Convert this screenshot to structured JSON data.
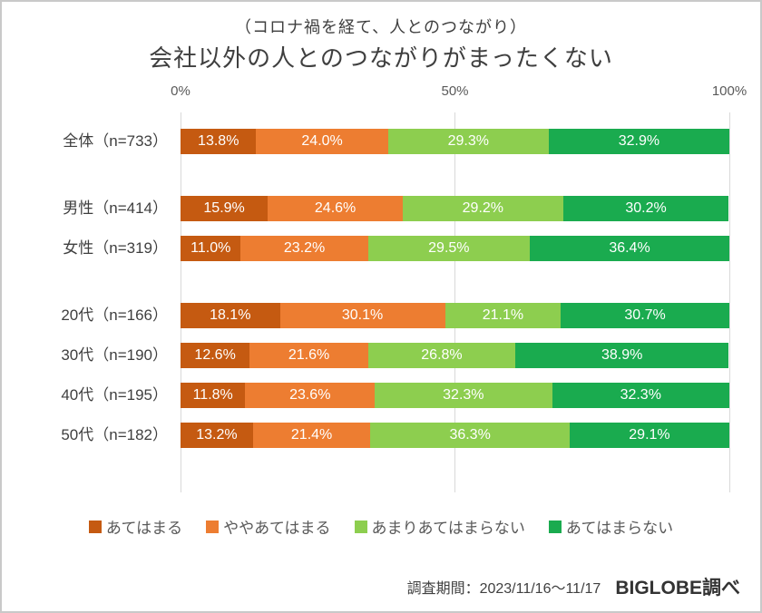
{
  "chart_data": {
    "type": "bar",
    "variant": "horizontal-stacked-100",
    "subtitle": "（コロナ禍を経て、人とのつながり）",
    "title": "会社以外の人とのつながりがまったくない",
    "x_axis": {
      "tick_labels": [
        "0%",
        "50%",
        "100%"
      ],
      "range": [
        0,
        100
      ],
      "gridlines": true
    },
    "categories": [
      "全体（n=733）",
      "男性（n=414）",
      "女性（n=319）",
      "20代（n=166）",
      "30代（n=190）",
      "40代（n=195）",
      "50代（n=182）"
    ],
    "group_breaks": [
      1,
      3
    ],
    "series": [
      {
        "name": "あてはまる",
        "color": "#C55A11",
        "values": [
          13.8,
          15.9,
          11.0,
          18.1,
          12.6,
          11.8,
          13.2
        ]
      },
      {
        "name": "ややあてはまる",
        "color": "#ED7D31",
        "values": [
          24.0,
          24.6,
          23.2,
          30.1,
          21.6,
          23.6,
          21.4
        ]
      },
      {
        "name": "あまりあてはまらない",
        "color": "#8DCE4F",
        "values": [
          29.3,
          29.2,
          29.5,
          21.1,
          26.8,
          32.3,
          36.3
        ]
      },
      {
        "name": "あてはまらない",
        "color": "#1AAB4F",
        "values": [
          32.9,
          30.2,
          36.4,
          30.7,
          38.9,
          32.3,
          29.1
        ]
      }
    ],
    "value_label_suffix": "%",
    "legend_position": "bottom"
  },
  "footer": {
    "survey_period": "調査期間：2023/11/16～11/17",
    "source": "BIGLOBE調べ"
  }
}
